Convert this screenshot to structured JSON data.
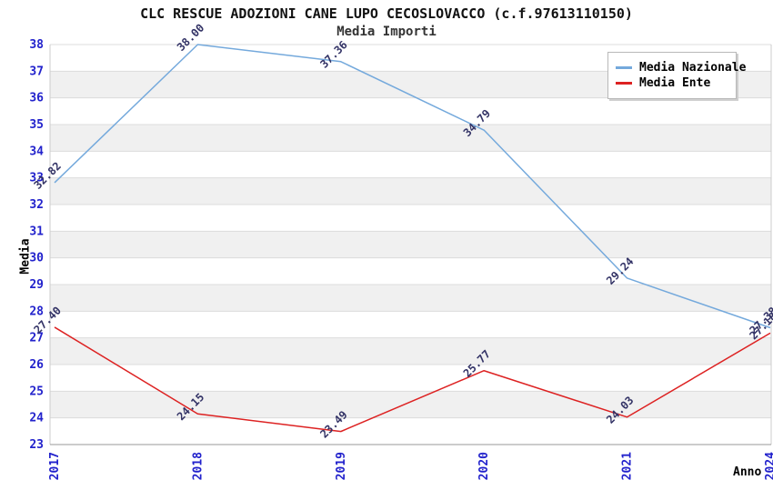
{
  "chart_data": {
    "type": "line",
    "title": "CLC RESCUE ADOZIONI CANE LUPO CECOSLOVACCO (c.f.97613110150)",
    "subtitle": "Media Importi",
    "xlabel": "Anno",
    "ylabel": "Media",
    "categories": [
      "2017",
      "2018",
      "2019",
      "2020",
      "2021",
      "2024"
    ],
    "series": [
      {
        "name": "Media Nazionale",
        "color": "#74a9dc",
        "values": [
          32.82,
          38.0,
          37.36,
          34.79,
          29.24,
          27.38
        ]
      },
      {
        "name": "Media Ente",
        "color": "#dd2222",
        "values": [
          27.4,
          24.15,
          23.49,
          25.77,
          24.03,
          27.18
        ]
      }
    ],
    "ylim": [
      23,
      38
    ],
    "ytick_step": 1,
    "grid": "horizontal gridlines with alternating gray/white bands",
    "legend_position": "top-right",
    "colors": {
      "tick_label": "#2222cc",
      "point_label": "#333366",
      "band_gray": "#f0f0f0",
      "gridline": "#dcdcdc",
      "axis_line": "#999999",
      "side_line": "#cccccc"
    }
  }
}
